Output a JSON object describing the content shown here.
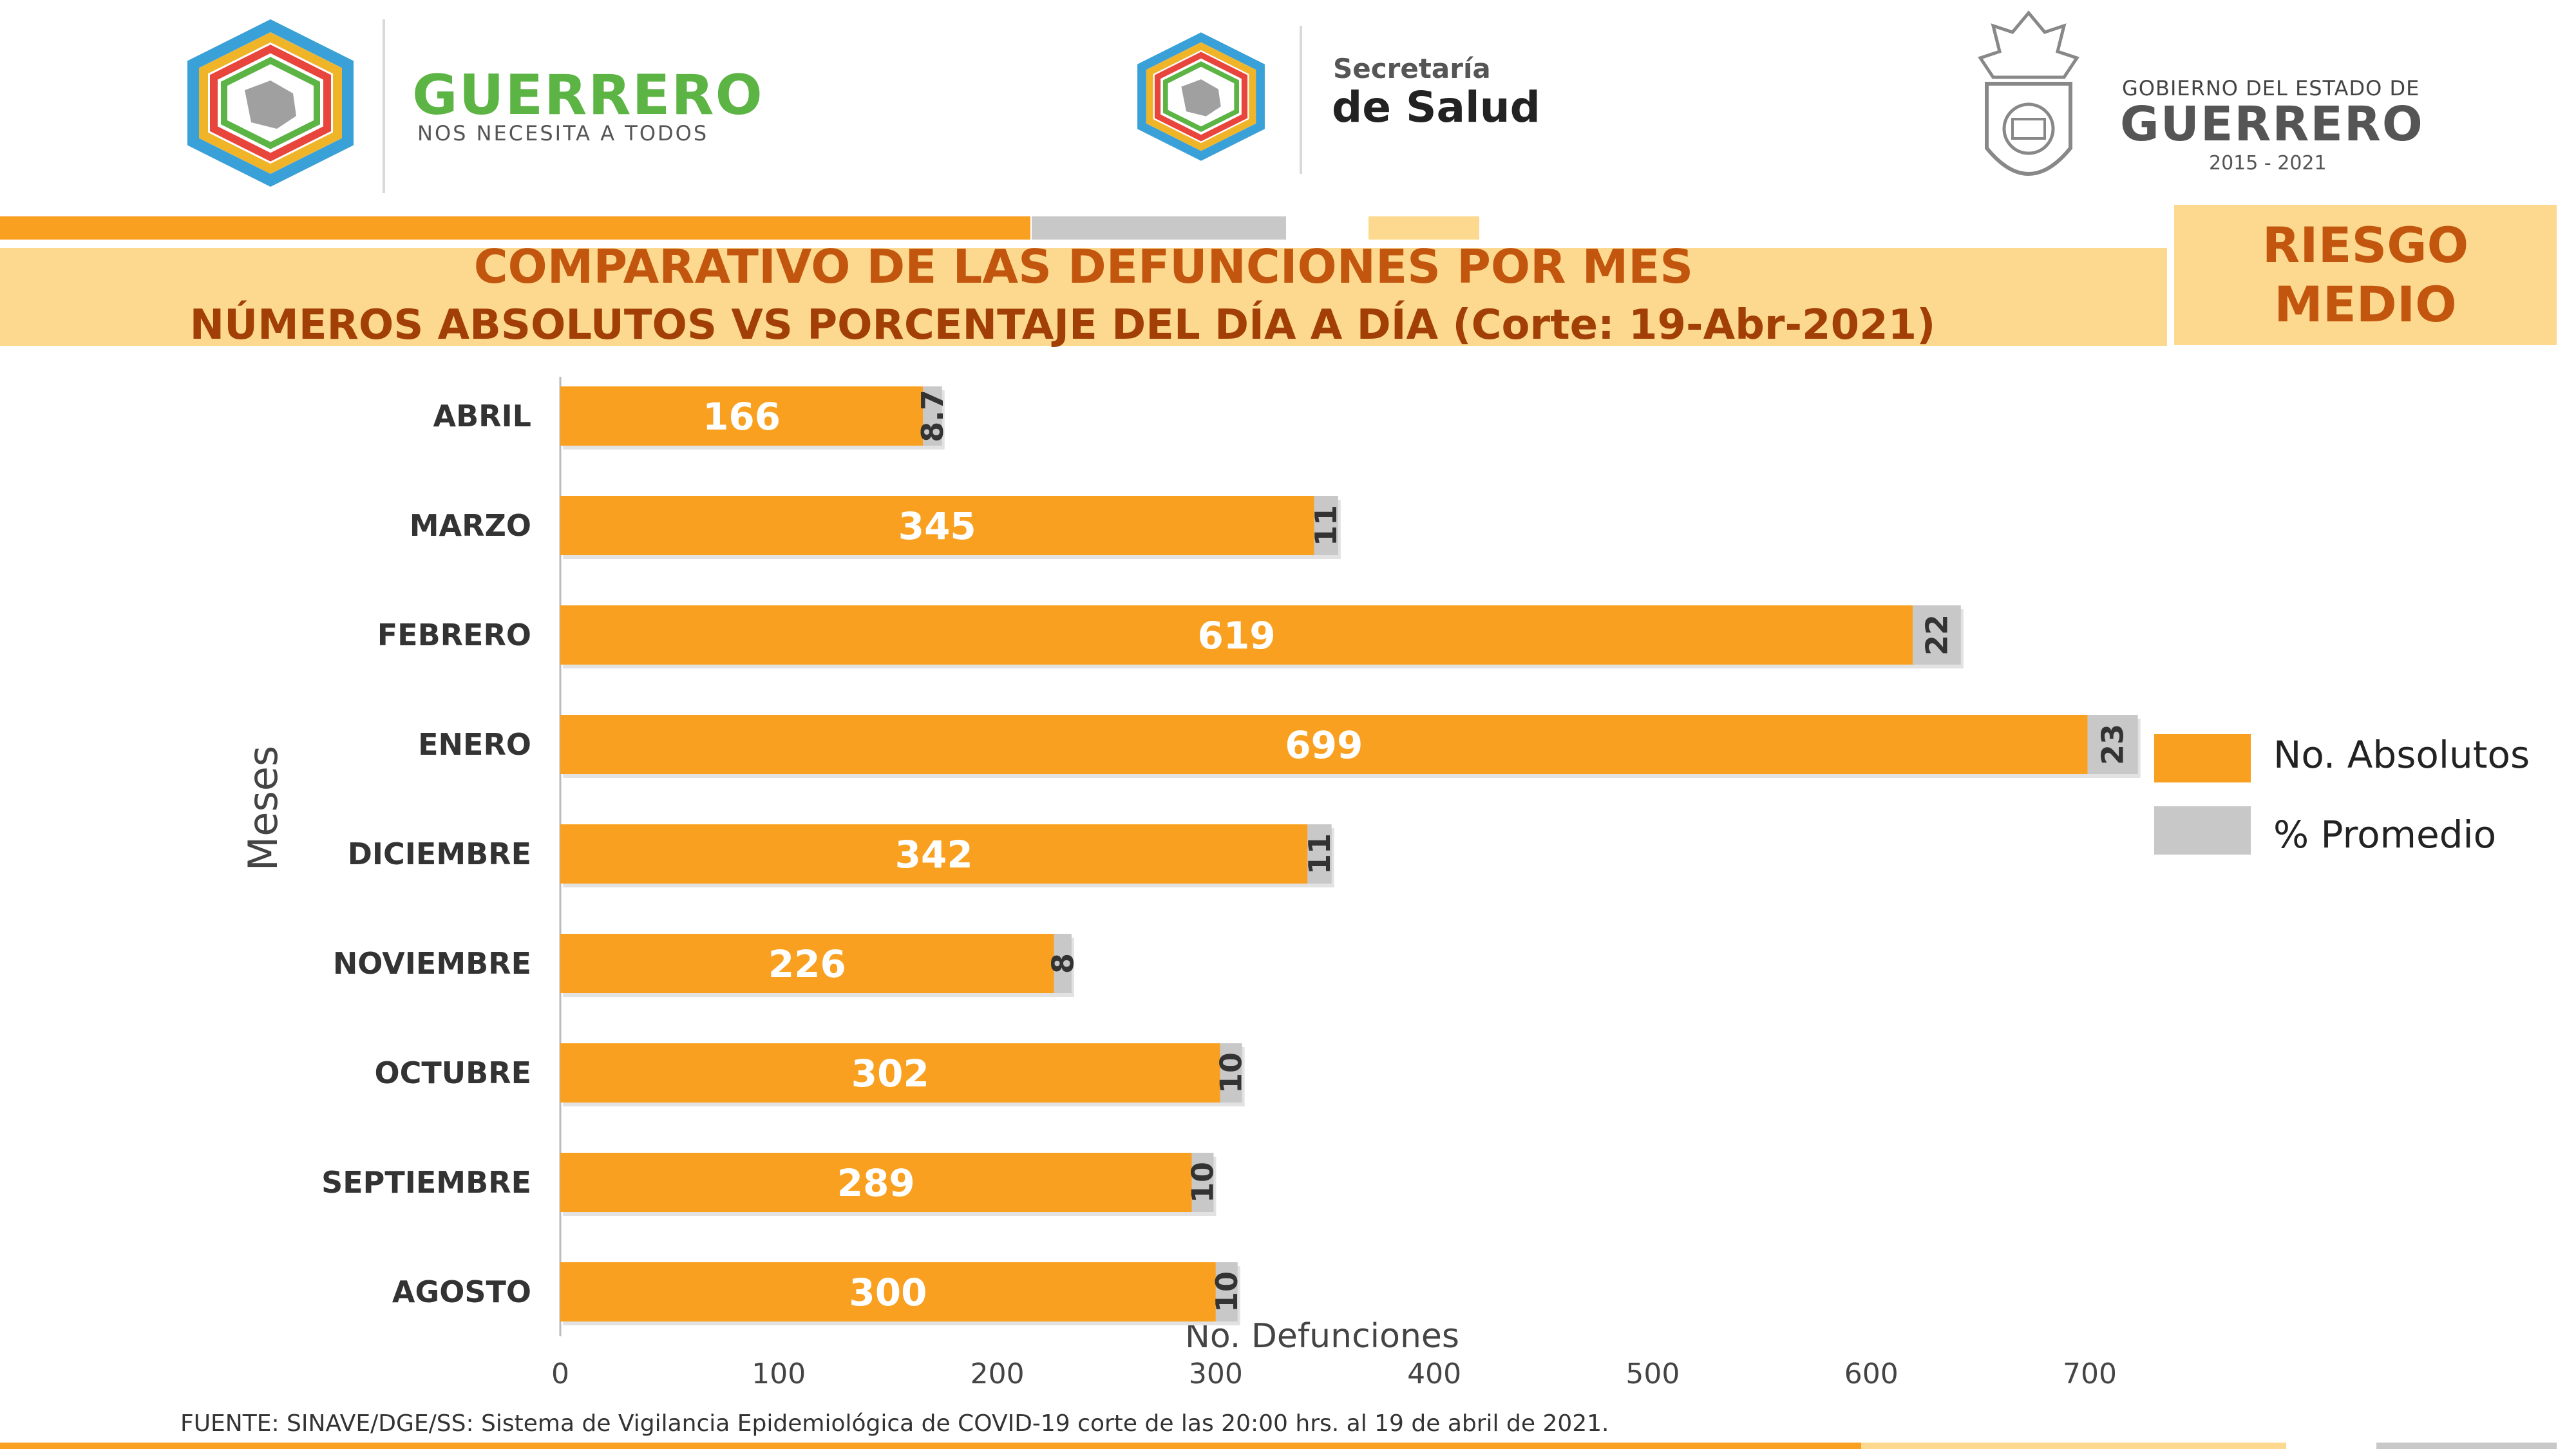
{
  "header": {
    "left_brand": {
      "name": "GUERRERO",
      "tagline": "NOS NECESITA A TODOS"
    },
    "center_brand": {
      "line1": "Secretaría",
      "line2": "de Salud"
    },
    "right_brand": {
      "line1": "GOBIERNO DEL ESTADO DE",
      "line2": "GUERRERO",
      "years": "2015 - 2021"
    }
  },
  "title": {
    "line1": "COMPARATIVO DE LAS DEFUNCIONES POR MES",
    "line2": "NÚMEROS ABSOLUTOS VS PORCENTAJE DEL DÍA A DÍA   (Corte: 19-Abr-2021)"
  },
  "risk": {
    "line1": "RIESGO",
    "line2": "MEDIO"
  },
  "legend": {
    "items": [
      {
        "label": "No. Absolutos",
        "color": "#f9a020"
      },
      {
        "label": "% Promedio",
        "color": "#c8c8c8"
      }
    ]
  },
  "chart_data": {
    "type": "bar",
    "orientation": "horizontal",
    "categories": [
      "ABRIL",
      "MARZO",
      "FEBRERO",
      "ENERO",
      "DICIEMBRE",
      "NOVIEMBRE",
      "OCTUBRE",
      "SEPTIEMBRE",
      "AGOSTO"
    ],
    "series": [
      {
        "name": "No. Absolutos",
        "values": [
          166,
          345,
          619,
          699,
          342,
          226,
          302,
          289,
          300
        ],
        "color": "#f9a020"
      },
      {
        "name": "% Promedio",
        "values": [
          8.7,
          11,
          22,
          23,
          11,
          8,
          10,
          10,
          10
        ],
        "labels": [
          "8.7",
          "11",
          "22",
          "23",
          "11",
          "8",
          "10",
          "10",
          "10"
        ],
        "color": "#c8c8c8"
      }
    ],
    "stacked": true,
    "xlabel": "No. Defunciones",
    "ylabel": "Meses",
    "xlim": [
      0,
      700
    ],
    "xticks": [
      0,
      100,
      200,
      300,
      400,
      500,
      600,
      700
    ],
    "legend_position": "right"
  },
  "footer": {
    "source": "FUENTE: SINAVE/DGE/SS: Sistema de Vigilancia Epidemiológica de COVID-19 corte de las 20:00 hrs. al 19 de  abril de 2021."
  },
  "colors": {
    "orange": "#f9a020",
    "gray": "#c8c8c8",
    "light_yellow": "#fcd98f",
    "title_orange": "#c2560f",
    "green_brand": "#5bb443"
  }
}
